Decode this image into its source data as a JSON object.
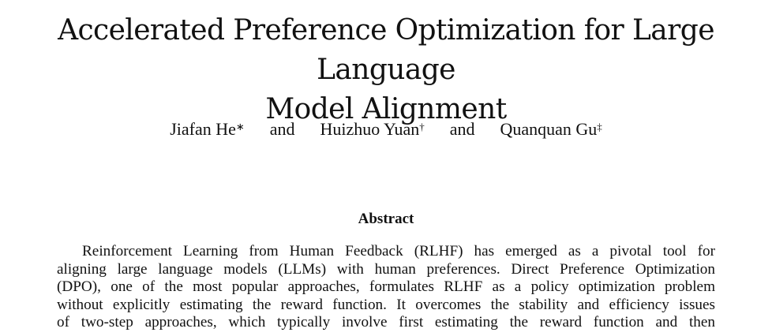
{
  "title": {
    "line1": "Accelerated Preference Optimization for Large Language",
    "line2": "Model Alignment"
  },
  "authors": [
    {
      "name": "Jiafan He",
      "mark": "∗"
    },
    {
      "name": "Huizhuo Yuan",
      "mark": "†"
    },
    {
      "name": "Quanquan Gu",
      "mark": "‡"
    }
  ],
  "author_separator": "and",
  "abstract": {
    "heading": "Abstract",
    "lines": [
      "Reinforcement Learning from Human Feedback (RLHF) has emerged as a pivotal tool for",
      "aligning large language models (LLMs) with human preferences. Direct Preference Optimization",
      "(DPO), one of the most popular approaches, formulates RLHF as a policy optimization problem",
      "without explicitly estimating the reward function. It overcomes the stability and efficiency issues",
      "of two-step approaches, which typically involve first estimating the reward function and then"
    ]
  }
}
